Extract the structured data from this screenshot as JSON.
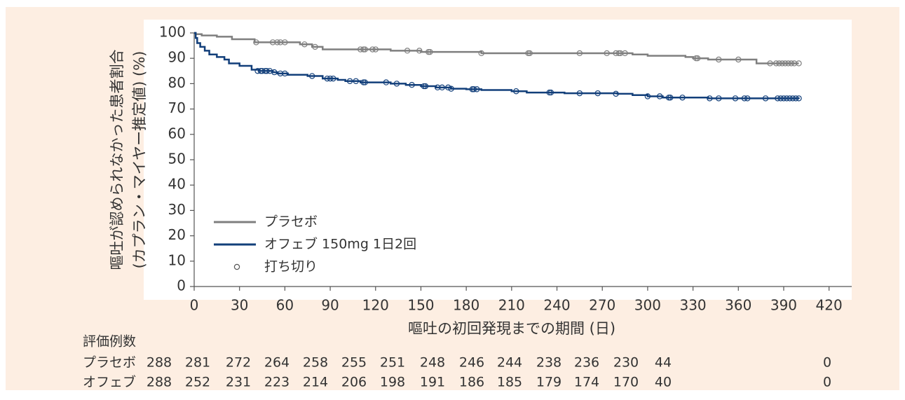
{
  "chart_data": {
    "type": "step",
    "y_label": [
      "嘔吐が認められなかった患者割合",
      "(カプラン・マイヤー推定値) (%)"
    ],
    "x_label": "嘔吐の初回発現までの期間 (日)",
    "xlim": [
      0,
      435
    ],
    "ylim": [
      0,
      100
    ],
    "xticks": [
      0,
      30,
      60,
      90,
      120,
      150,
      180,
      210,
      240,
      270,
      300,
      330,
      360,
      390,
      420
    ],
    "yticks": [
      0,
      10,
      20,
      30,
      40,
      50,
      60,
      70,
      80,
      90,
      100
    ],
    "censor_legend": "打ち切り",
    "series": [
      {
        "name": "プラセボ",
        "color": "#7f7f7f",
        "x": [
          0,
          1,
          5,
          15,
          25,
          40,
          70,
          78,
          85,
          130,
          150,
          190,
          290,
          300,
          325,
          330,
          340,
          372,
          400
        ],
        "values": [
          100,
          99.5,
          99,
          98.5,
          97.5,
          96.3,
          95.5,
          94.5,
          93.5,
          93,
          92.5,
          92,
          91.5,
          91,
          90.5,
          90,
          89.5,
          88,
          88
        ],
        "censor_x": [
          41,
          52,
          55,
          57,
          60,
          73,
          80,
          110,
          112,
          113,
          118,
          120,
          141,
          149,
          155,
          156,
          190,
          221,
          222,
          255,
          273,
          279,
          281,
          282,
          285,
          332,
          333,
          347,
          360,
          381,
          385,
          387,
          389,
          391,
          393,
          395,
          397,
          400
        ],
        "censor_values": [
          96.3,
          96.3,
          96.3,
          96.3,
          96.3,
          95.5,
          94.5,
          93.5,
          93.5,
          93.5,
          93.5,
          93.5,
          93,
          93,
          92.5,
          92.5,
          92,
          92,
          92,
          92,
          92,
          92,
          92,
          92,
          92,
          90,
          90,
          89.5,
          89.5,
          88,
          88,
          88,
          88,
          88,
          88,
          88,
          88,
          88
        ]
      },
      {
        "name": "オフェブ 150mg 1日2回",
        "color": "#123f7a",
        "x": [
          0,
          1,
          2,
          4,
          7,
          10,
          15,
          20,
          23,
          30,
          38,
          43,
          52,
          55,
          62,
          75,
          85,
          95,
          100,
          110,
          130,
          140,
          150,
          160,
          170,
          180,
          190,
          210,
          220,
          245,
          280,
          290,
          300,
          310,
          340,
          400
        ],
        "values": [
          100,
          98,
          96,
          94.5,
          93,
          91.5,
          90.5,
          89.5,
          88,
          87,
          85.5,
          85,
          84.5,
          84,
          83.5,
          83,
          82,
          81.5,
          81,
          80.5,
          80,
          79.5,
          79,
          78.5,
          78,
          77.8,
          77.5,
          77,
          76.5,
          76.2,
          76,
          75.5,
          75,
          74.5,
          74.2,
          74
        ],
        "censor_x": [
          42,
          44,
          45,
          47,
          48,
          50,
          53,
          57,
          60,
          78,
          88,
          90,
          92,
          103,
          107,
          112,
          113,
          127,
          134,
          144,
          152,
          153,
          161,
          164,
          168,
          170,
          184,
          185,
          187,
          213,
          235,
          236,
          255,
          267,
          279,
          300,
          308,
          314,
          315,
          323,
          341,
          347,
          358,
          364,
          366,
          378,
          386,
          388,
          390,
          392,
          394,
          396,
          398,
          400
        ],
        "censor_values": [
          85,
          85,
          85,
          85,
          85,
          85,
          84.5,
          84,
          84,
          83,
          82,
          82,
          82,
          81,
          81,
          80.5,
          80.5,
          80.5,
          80,
          79.5,
          79,
          79,
          78.5,
          78.5,
          78.5,
          78,
          77.8,
          77.8,
          77.8,
          77,
          76.5,
          76.5,
          76.2,
          76.2,
          76,
          75,
          75,
          74.5,
          74.5,
          74.5,
          74.2,
          74.2,
          74.2,
          74.2,
          74.2,
          74.2,
          74.2,
          74.2,
          74.2,
          74.2,
          74.2,
          74.2,
          74.2,
          74.2
        ]
      }
    ],
    "risk_table": {
      "title": "評価例数",
      "rows": [
        {
          "label": "プラセボ",
          "values": [
            288,
            281,
            272,
            264,
            258,
            255,
            251,
            248,
            246,
            244,
            238,
            236,
            230,
            44,
            0
          ]
        },
        {
          "label": "オフェブ",
          "values": [
            288,
            252,
            231,
            223,
            214,
            206,
            198,
            191,
            186,
            185,
            179,
            174,
            170,
            40,
            0
          ]
        }
      ]
    }
  }
}
